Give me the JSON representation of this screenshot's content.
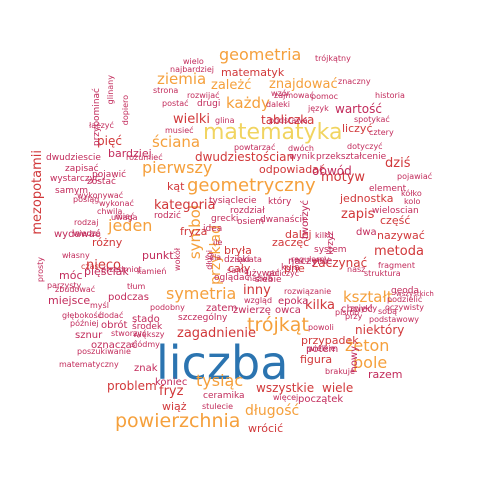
{
  "colors": {
    "blue": "#2b74b0",
    "orange": "#f5a03c",
    "yellow": "#f1d460",
    "red": "#d1383a",
    "crimson": "#c22b5b"
  },
  "words": [
    {
      "text": "liczba",
      "color": "blue"
    },
    {
      "text": "matematyka",
      "color": "yellow"
    },
    {
      "text": "powierzchnia",
      "color": "orange"
    },
    {
      "text": "geometryczny",
      "color": "orange"
    },
    {
      "text": "trójkąt",
      "color": "orange"
    },
    {
      "text": "symetria",
      "color": "orange"
    },
    {
      "text": "geometria",
      "color": "orange"
    },
    {
      "text": "pierwszy",
      "color": "orange"
    },
    {
      "text": "jeden",
      "color": "orange"
    },
    {
      "text": "tysiąc",
      "color": "orange"
    },
    {
      "text": "żeton",
      "color": "orange"
    },
    {
      "text": "pole",
      "color": "orange"
    },
    {
      "text": "kształt",
      "color": "orange"
    },
    {
      "text": "ziemia",
      "color": "orange"
    },
    {
      "text": "każdy",
      "color": "orange"
    },
    {
      "text": "ściana",
      "color": "orange"
    },
    {
      "text": "symbol",
      "color": "orange"
    },
    {
      "text": "długość",
      "color": "orange"
    },
    {
      "text": "znajdować",
      "color": "orange"
    },
    {
      "text": "zależć",
      "color": "orange"
    },
    {
      "text": "wielki",
      "color": "red"
    },
    {
      "text": "tabliczka",
      "color": "red"
    },
    {
      "text": "dwudziestościan",
      "color": "red"
    },
    {
      "text": "odpowiadać",
      "color": "red"
    },
    {
      "text": "kategoria",
      "color": "red"
    },
    {
      "text": "przykład",
      "color": "orange"
    },
    {
      "text": "inny",
      "color": "red"
    },
    {
      "text": "zagadnienie",
      "color": "red"
    },
    {
      "text": "mezopotamii",
      "color": "red"
    },
    {
      "text": "metoda",
      "color": "red"
    },
    {
      "text": "motyw",
      "color": "red"
    },
    {
      "text": "dziś",
      "color": "red"
    },
    {
      "text": "zapis",
      "color": "red"
    },
    {
      "text": "nazywać",
      "color": "red"
    },
    {
      "text": "nieco",
      "color": "red"
    },
    {
      "text": "czas",
      "color": "red"
    },
    {
      "text": "kilka",
      "color": "red"
    },
    {
      "text": "niektóry",
      "color": "red"
    },
    {
      "text": "przypadek",
      "color": "red"
    },
    {
      "text": "figura",
      "color": "red"
    },
    {
      "text": "wszystkie",
      "color": "red"
    },
    {
      "text": "wiele",
      "color": "red"
    },
    {
      "text": "problem",
      "color": "red"
    },
    {
      "text": "fryz",
      "color": "red"
    },
    {
      "text": "wiąż",
      "color": "red"
    },
    {
      "text": "wrócić",
      "color": "red"
    },
    {
      "text": "matematyk",
      "color": "red"
    },
    {
      "text": "liczyć",
      "color": "red"
    },
    {
      "text": "pięć",
      "color": "red"
    },
    {
      "text": "istnieć",
      "color": "crimson"
    },
    {
      "text": "bardziej",
      "color": "crimson"
    },
    {
      "text": "wartość",
      "color": "crimson"
    },
    {
      "text": "obwód",
      "color": "crimson"
    },
    {
      "text": "kąt",
      "color": "red"
    },
    {
      "text": "zaczynać",
      "color": "red"
    },
    {
      "text": "zaczęć",
      "color": "red"
    },
    {
      "text": "jednostka",
      "color": "red"
    },
    {
      "text": "część",
      "color": "red"
    },
    {
      "text": "pne",
      "color": "red"
    },
    {
      "text": "dalej",
      "color": "red"
    },
    {
      "text": "cały",
      "color": "red"
    },
    {
      "text": "bryła",
      "color": "red"
    },
    {
      "text": "fryza",
      "color": "red"
    },
    {
      "text": "rodzić",
      "color": "crimson"
    },
    {
      "text": "idea",
      "color": "crimson"
    },
    {
      "text": "różny",
      "color": "red"
    },
    {
      "text": "wydawać",
      "color": "crimson"
    },
    {
      "text": "zbudować",
      "color": "crimson"
    },
    {
      "text": "móc",
      "color": "crimson"
    },
    {
      "text": "pięściak",
      "color": "crimson"
    },
    {
      "text": "miejsce",
      "color": "crimson"
    },
    {
      "text": "podczas",
      "color": "crimson"
    },
    {
      "text": "zatem",
      "color": "crimson"
    },
    {
      "text": "punkt",
      "color": "crimson"
    },
    {
      "text": "stado",
      "color": "crimson"
    },
    {
      "text": "znak",
      "color": "crimson"
    },
    {
      "text": "koniec",
      "color": "crimson"
    },
    {
      "text": "ceramika",
      "color": "crimson"
    },
    {
      "text": "początek",
      "color": "crimson"
    },
    {
      "text": "potem",
      "color": "crimson"
    },
    {
      "text": "razem",
      "color": "crimson"
    },
    {
      "text": "nowy",
      "color": "crimson"
    },
    {
      "text": "sznur",
      "color": "crimson"
    },
    {
      "text": "obrót",
      "color": "crimson"
    },
    {
      "text": "środek",
      "color": "crimson"
    },
    {
      "text": "oznaczać",
      "color": "crimson"
    },
    {
      "text": "zwierzę",
      "color": "crimson"
    },
    {
      "text": "owca",
      "color": "crimson"
    },
    {
      "text": "epoka",
      "color": "crimson"
    },
    {
      "text": "chcieć",
      "color": "crimson"
    },
    {
      "text": "naczynie",
      "color": "crimson"
    },
    {
      "text": "system",
      "color": "crimson"
    },
    {
      "text": "geoda",
      "color": "crimson"
    },
    {
      "text": "element",
      "color": "crimson"
    },
    {
      "text": "wieloscian",
      "color": "crimson"
    },
    {
      "text": "dwa",
      "color": "crimson"
    },
    {
      "text": "tworzyć",
      "color": "crimson"
    },
    {
      "text": "tysiąclecie",
      "color": "crimson"
    },
    {
      "text": "który",
      "color": "crimson"
    },
    {
      "text": "rozdział",
      "color": "crimson"
    },
    {
      "text": "grecki",
      "color": "crimson"
    },
    {
      "text": "osiem",
      "color": "crimson"
    },
    {
      "text": "dwanaście",
      "color": "crimson"
    },
    {
      "text": "kula",
      "color": "crimson"
    },
    {
      "text": "regularny",
      "color": "crimson"
    },
    {
      "text": "wynik",
      "color": "crimson"
    },
    {
      "text": "przekształcenie",
      "color": "crimson"
    },
    {
      "text": "dwudziescie",
      "color": "crimson"
    },
    {
      "text": "zapisać",
      "color": "crimson"
    },
    {
      "text": "pojawić",
      "color": "crimson"
    },
    {
      "text": "wystarczyć",
      "color": "crimson"
    },
    {
      "text": "zostać",
      "color": "crimson"
    },
    {
      "text": "samym",
      "color": "crimson"
    },
    {
      "text": "wykonywać",
      "color": "crimson"
    },
    {
      "text": "rozumieć",
      "color": "crimson"
    },
    {
      "text": "powtarzać",
      "color": "crimson"
    },
    {
      "text": "dwóch",
      "color": "crimson"
    },
    {
      "text": "wzór",
      "color": "crimson"
    },
    {
      "text": "strona",
      "color": "crimson"
    },
    {
      "text": "rozwijać",
      "color": "crimson"
    },
    {
      "text": "postać",
      "color": "crimson"
    },
    {
      "text": "drugi",
      "color": "crimson"
    },
    {
      "text": "daleki",
      "color": "crimson"
    },
    {
      "text": "musieć",
      "color": "crimson"
    },
    {
      "text": "glina",
      "color": "crimson"
    },
    {
      "text": "podstawa",
      "color": "crimson"
    },
    {
      "text": "język",
      "color": "crimson"
    },
    {
      "text": "spotykać",
      "color": "crimson"
    },
    {
      "text": "cztery",
      "color": "crimson"
    },
    {
      "text": "łączyć",
      "color": "crimson"
    },
    {
      "text": "historia",
      "color": "crimson"
    },
    {
      "text": "dotyczyć",
      "color": "crimson"
    },
    {
      "text": "kółko",
      "color": "crimson"
    },
    {
      "text": "kolo",
      "color": "crimson"
    },
    {
      "text": "pojawiać",
      "color": "crimson"
    },
    {
      "text": "fragment",
      "color": "crimson"
    },
    {
      "text": "nasz",
      "color": "crimson"
    },
    {
      "text": "struktura",
      "color": "crimson"
    },
    {
      "text": "podzielić",
      "color": "crimson"
    },
    {
      "text": "wszystkich",
      "color": "crimson"
    },
    {
      "text": "oczywisty",
      "color": "crimson"
    },
    {
      "text": "podstawowy",
      "color": "crimson"
    },
    {
      "text": "sobą",
      "color": "crimson"
    },
    {
      "text": "przy",
      "color": "crimson"
    },
    {
      "text": "pismo",
      "color": "crimson"
    },
    {
      "text": "zwykły",
      "color": "crimson"
    },
    {
      "text": "powoli",
      "color": "crimson"
    },
    {
      "text": "wielkie",
      "color": "crimson"
    },
    {
      "text": "brakuje",
      "color": "crimson"
    },
    {
      "text": "więcej",
      "color": "crimson"
    },
    {
      "text": "stulecie",
      "color": "crimson"
    },
    {
      "text": "szczególny",
      "color": "crimson"
    },
    {
      "text": "większy",
      "color": "crimson"
    },
    {
      "text": "siódmy",
      "color": "crimson"
    },
    {
      "text": "stworzyć",
      "color": "crimson"
    },
    {
      "text": "poszukiwanie",
      "color": "crimson"
    },
    {
      "text": "matematyczny",
      "color": "crimson"
    },
    {
      "text": "głębokość",
      "color": "crimson"
    },
    {
      "text": "później",
      "color": "crimson"
    },
    {
      "text": "dodać",
      "color": "crimson"
    },
    {
      "text": "myśl",
      "color": "crimson"
    },
    {
      "text": "parzysty",
      "color": "crimson"
    },
    {
      "text": "prosty",
      "color": "crimson"
    },
    {
      "text": "własny",
      "color": "crimson"
    },
    {
      "text": "przedmiot",
      "color": "crimson"
    },
    {
      "text": "kamień",
      "color": "crimson"
    },
    {
      "text": "tłum",
      "color": "crimson"
    },
    {
      "text": "podobny",
      "color": "crimson"
    },
    {
      "text": "wzgląd",
      "color": "crimson"
    },
    {
      "text": "oglądać",
      "color": "crimson"
    },
    {
      "text": "używać",
      "color": "crimson"
    },
    {
      "text": "obliczyć",
      "color": "crimson"
    },
    {
      "text": "nazwa",
      "color": "crimson"
    },
    {
      "text": "rozwiązanie",
      "color": "crimson"
    },
    {
      "text": "siebie",
      "color": "crimson"
    },
    {
      "text": "dzięki",
      "color": "crimson"
    },
    {
      "text": "sama",
      "color": "crimson"
    },
    {
      "text": "świata",
      "color": "crimson"
    },
    {
      "text": "sala",
      "color": "crimson"
    },
    {
      "text": "ile",
      "color": "crimson"
    },
    {
      "text": "wokół",
      "color": "crimson"
    },
    {
      "text": "długi",
      "color": "crimson"
    },
    {
      "text": "mieć",
      "color": "crimson"
    },
    {
      "text": "rodzaj",
      "color": "crimson"
    },
    {
      "text": "wiedza",
      "color": "crimson"
    },
    {
      "text": "pośląg",
      "color": "crimson"
    },
    {
      "text": "uwaga",
      "color": "crimson"
    },
    {
      "text": "wykonać",
      "color": "crimson"
    },
    {
      "text": "chwila",
      "color": "crimson"
    },
    {
      "text": "przypominać",
      "color": "crimson"
    },
    {
      "text": "glinany",
      "color": "crimson"
    },
    {
      "text": "dopiero",
      "color": "crimson"
    },
    {
      "text": "wielo",
      "color": "crimson"
    },
    {
      "text": "najbardziej",
      "color": "crimson"
    },
    {
      "text": "trójkątny",
      "color": "crimson"
    },
    {
      "text": "znaczny",
      "color": "crimson"
    },
    {
      "text": "pomoc",
      "color": "crimson"
    },
    {
      "text": "zajmować",
      "color": "crimson"
    },
    {
      "text": "krzyż",
      "color": "crimson"
    },
    {
      "text": "kilku",
      "color": "crimson"
    }
  ]
}
